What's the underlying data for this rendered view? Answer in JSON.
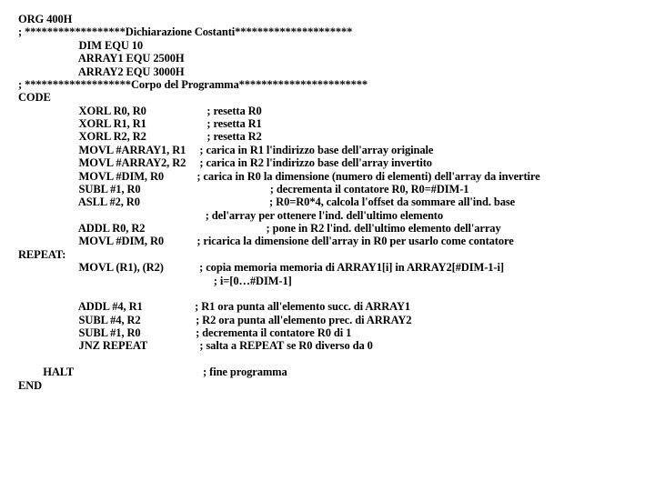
{
  "lines": [
    {
      "name": "line-org",
      "text": "ORG 400H"
    },
    {
      "name": "line-sec-decl",
      "text": "; ******************Dichiarazione Costanti*********************"
    },
    {
      "name": "line-dim",
      "text": "                      DIM EQU 10"
    },
    {
      "name": "line-arr1",
      "text": "                      ARRAY1 EQU 2500H"
    },
    {
      "name": "line-arr2",
      "text": "                      ARRAY2 EQU 3000H"
    },
    {
      "name": "line-sec-body",
      "text": "; *******************Corpo del Programma***********************"
    },
    {
      "name": "line-codelbl",
      "text": "CODE"
    },
    {
      "name": "line-xorl-r0",
      "text": "                      XORL R0, R0                      ; resetta R0"
    },
    {
      "name": "line-xorl-r1",
      "text": "                      XORL R1, R1                      ; resetta R1"
    },
    {
      "name": "line-xorl-r2",
      "text": "                      XORL R2, R2                      ; resetta R2"
    },
    {
      "name": "line-movl-a1",
      "text": "                      MOVL #ARRAY1, R1     ; carica in R1 l'indirizzo base dell'array originale"
    },
    {
      "name": "line-movl-a2",
      "text": "                      MOVL #ARRAY2, R2     ; carica in R2 l'indirizzo base dell'array invertito"
    },
    {
      "name": "line-movl-dim",
      "text": "                      MOVL #DIM, R0            ; carica in R0 la dimensione (numero di elementi) dell'array da invertire"
    },
    {
      "name": "line-subl1",
      "text": "                      SUBL #1, R0                                               ; decrementa il contatore R0, R0=#DIM-1"
    },
    {
      "name": "line-asll2",
      "text": "                      ASLL #2, R0                                               ; R0=R0*4, calcola l'offset da sommare all'ind. base"
    },
    {
      "name": "line-comment1",
      "text": "                                                                    ; del'array per ottenere l'ind. dell'ultimo elemento"
    },
    {
      "name": "line-addl-r0",
      "text": "                      ADDL R0, R2                                            ; pone in R2 l'ind. dell'ultimo elemento dell'array"
    },
    {
      "name": "line-movl-d2",
      "text": "                      MOVL #DIM, R0            ; ricarica la dimensione dell'array in R0 per usarlo come contatore"
    },
    {
      "name": "line-repeat",
      "text": "REPEAT:"
    },
    {
      "name": "line-movlrr",
      "text": "                      MOVL (R1), (R2)             ; copia memoria memoria di ARRAY1[i] in ARRAY2[#DIM-1-i]"
    },
    {
      "name": "line-irange",
      "text": "                                                                       ; i=[0…#DIM-1]"
    },
    {
      "name": "blank-1",
      "text": " "
    },
    {
      "name": "line-addl4",
      "text": "                      ADDL #4, R1                   ; R1 ora punta all'elemento succ. di ARRAY1"
    },
    {
      "name": "line-subl4",
      "text": "                      SUBL #4, R2                    ; R2 ora punta all'elemento prec. di ARRAY2"
    },
    {
      "name": "line-subl1b",
      "text": "                      SUBL #1, R0                    ; decrementa il contatore R0 di 1"
    },
    {
      "name": "line-jnz",
      "text": "                      JNZ REPEAT                   ; salta a REPEAT se R0 diverso da 0"
    },
    {
      "name": "blank-2",
      "text": " "
    },
    {
      "name": "line-halt",
      "text": "         HALT                                               ; fine programma"
    },
    {
      "name": "line-end",
      "text": "END"
    }
  ]
}
